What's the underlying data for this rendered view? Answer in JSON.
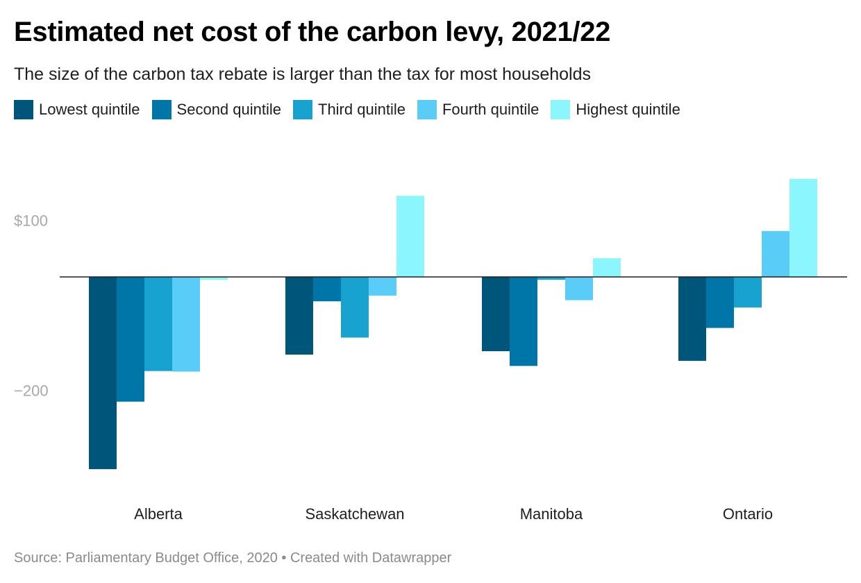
{
  "header": {
    "title": "Estimated net cost of the carbon levy, 2021/22",
    "subtitle": "The size of the carbon tax rebate is larger than the tax for most households"
  },
  "footer": {
    "source": "Source: Parliamentary Budget Office, 2020 • Created with Datawrapper"
  },
  "chart_data": {
    "type": "bar",
    "title": "Estimated net cost of the carbon levy, 2021/22",
    "subtitle": "The size of the carbon tax rebate is larger than the tax for most households",
    "categories": [
      "Alberta",
      "Saskatchewan",
      "Manitoba",
      "Ontario"
    ],
    "series": [
      {
        "name": "Lowest quintile",
        "color": "#00557a",
        "values": [
          -339,
          -137,
          -131,
          -148
        ]
      },
      {
        "name": "Second quintile",
        "color": "#0076a8",
        "values": [
          -220,
          -43,
          -157,
          -90
        ]
      },
      {
        "name": "Third quintile",
        "color": "#18a2d0",
        "values": [
          -166,
          -107,
          -5,
          -54
        ]
      },
      {
        "name": "Fourth quintile",
        "color": "#59cdf7",
        "values": [
          -167,
          -33,
          -41,
          81
        ]
      },
      {
        "name": "Highest quintile",
        "color": "#8cf6ff",
        "values": [
          -5,
          143,
          33,
          173
        ]
      }
    ],
    "yticks": [
      {
        "value": 100,
        "label": "$100"
      },
      {
        "value": -200,
        "label": "−200"
      }
    ],
    "ylim": [
      -370,
      200
    ],
    "grid": false,
    "legend": "top-left"
  }
}
